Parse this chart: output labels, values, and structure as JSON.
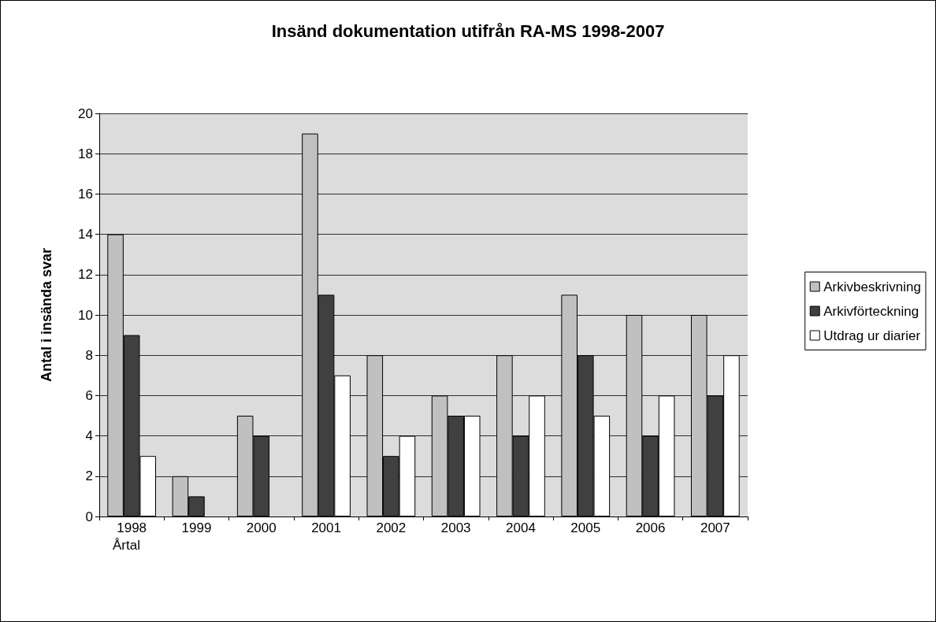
{
  "chart_data": {
    "type": "bar",
    "title": "Insänd dokumentation utifrån RA-MS 1998-2007",
    "xlabel": "Årtal",
    "ylabel": "Antal i insända svar",
    "categories": [
      "1998",
      "1999",
      "2000",
      "2001",
      "2002",
      "2003",
      "2004",
      "2005",
      "2006",
      "2007"
    ],
    "series": [
      {
        "name": "Arkivbeskrivning",
        "color": "#c0c0c0",
        "values": [
          14,
          2,
          5,
          19,
          8,
          6,
          8,
          11,
          10,
          10
        ]
      },
      {
        "name": "Arkivförteckning",
        "color": "#404040",
        "values": [
          9,
          1,
          4,
          11,
          3,
          5,
          4,
          8,
          4,
          6
        ]
      },
      {
        "name": "Utdrag ur diarier",
        "color": "#ffffff",
        "values": [
          3,
          null,
          null,
          7,
          4,
          5,
          6,
          5,
          6,
          8
        ]
      }
    ],
    "ylim": [
      0,
      20
    ],
    "yticks": [
      0,
      2,
      4,
      6,
      8,
      10,
      12,
      14,
      16,
      18,
      20
    ],
    "grid": "y",
    "legend": "right"
  }
}
